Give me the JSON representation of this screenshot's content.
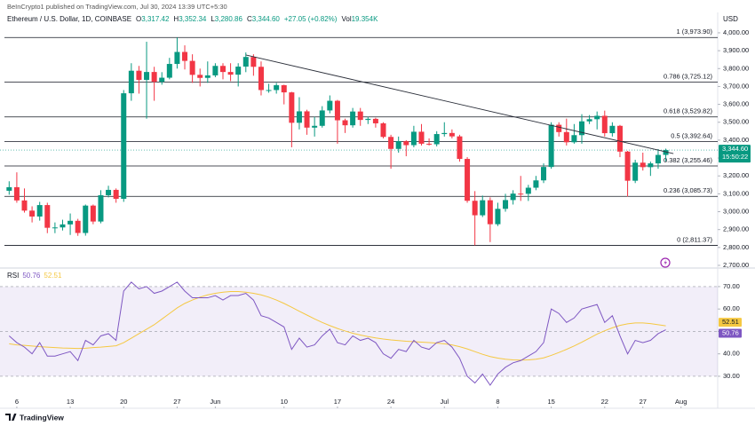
{
  "header": {
    "publisher": "BeInCrypto1 published on TradingView.com, Jul 30, 2024 13:39 UTC+5:30",
    "symbol": "Ethereum / U.S. Dollar, 1D, COINBASE",
    "ohlc": [
      {
        "key": "O",
        "value": "3,317.42"
      },
      {
        "key": "H",
        "value": "3,352.34"
      },
      {
        "key": "L",
        "value": "3,280.86"
      },
      {
        "key": "C",
        "value": "3,344.60"
      }
    ],
    "change": "+27.05 (+0.82%)",
    "volume_key": "Vol",
    "volume": "19.354K",
    "currency": "USD"
  },
  "footer": {
    "brand": "TradingView"
  },
  "chart_data": [
    {
      "type": "candlestick",
      "up_color": "#089981",
      "down_color": "#f23645",
      "xlim": [
        -1.2,
        92.8
      ],
      "xticks": [
        {
          "value": 1,
          "label": "6"
        },
        {
          "value": 8,
          "label": "13"
        },
        {
          "value": 15,
          "label": "20"
        },
        {
          "value": 22,
          "label": "27"
        },
        {
          "value": 27,
          "label": "Jun"
        },
        {
          "value": 36,
          "label": "10"
        },
        {
          "value": 43,
          "label": "17"
        },
        {
          "value": 50,
          "label": "24"
        },
        {
          "value": 57,
          "label": "Jul"
        },
        {
          "value": 64,
          "label": "8"
        },
        {
          "value": 71,
          "label": "15"
        },
        {
          "value": 78,
          "label": "22"
        },
        {
          "value": 83,
          "label": "27"
        },
        {
          "value": 88,
          "label": "Aug"
        }
      ],
      "ylim": [
        2695,
        4109
      ],
      "yticks": [
        {
          "value": 2700,
          "label": "2,700.00"
        },
        {
          "value": 2800,
          "label": "2,800.00"
        },
        {
          "value": 2900,
          "label": "2,900.00"
        },
        {
          "value": 3000,
          "label": "3,000.00"
        },
        {
          "value": 3100,
          "label": "3,100.00"
        },
        {
          "value": 3200,
          "label": "3,200.00"
        },
        {
          "value": 3300,
          "label": "3,300.00"
        },
        {
          "value": 3400,
          "label": "3,400.00"
        },
        {
          "value": 3500,
          "label": "3,500.00"
        },
        {
          "value": 3600,
          "label": "3,600.00"
        },
        {
          "value": 3700,
          "label": "3,700.00"
        },
        {
          "value": 3800,
          "label": "3,800.00"
        },
        {
          "value": 3900,
          "label": "3,900.00"
        },
        {
          "value": 4000,
          "label": "4,000.00"
        }
      ],
      "fib_levels": [
        {
          "value": 3973.9,
          "label": "1 (3,973.90)"
        },
        {
          "value": 3725.12,
          "label": "0.786 (3,725.12)"
        },
        {
          "value": 3529.82,
          "label": "0.618 (3,529.82)"
        },
        {
          "value": 3392.64,
          "label": "0.5 (3,392.64)"
        },
        {
          "value": 3255.46,
          "label": "0.382 (3,255.46)"
        },
        {
          "value": 3085.73,
          "label": "0.236 (3,085.73)"
        },
        {
          "value": 2811.37,
          "label": "0 (2,811.37)"
        }
      ],
      "trend_line": {
        "x": [
          31,
          87
        ],
        "y": [
          3876,
          3325
        ]
      },
      "last_price": {
        "value": 3344.6,
        "label": "3,344.60"
      },
      "countdown": "15:50:22",
      "open": [
        3117,
        3137,
        3063,
        3006,
        2973,
        3037,
        2910,
        2912,
        2929,
        2949,
        2881,
        3034,
        2945,
        3092,
        3122,
        3072,
        3662,
        3788,
        3737,
        3781,
        3726,
        3749,
        3826,
        3893,
        3843,
        3765,
        3748,
        3762,
        3815,
        3781,
        3766,
        3811,
        3865,
        3810,
        3680,
        3680,
        3707,
        3667,
        3497,
        3561,
        3470,
        3480,
        3566,
        3620,
        3511,
        3483,
        3560,
        3513,
        3519,
        3494,
        3418,
        3351,
        3394,
        3372,
        3447,
        3380,
        3377,
        3434,
        3440,
        3421,
        3295,
        3061,
        2980,
        3064,
        2930,
        3016,
        3065,
        3101,
        3100,
        3134,
        3175,
        3250,
        3486,
        3445,
        3388,
        3428,
        3505,
        3517,
        3536,
        3439,
        3480,
        3336,
        3173,
        3274,
        3249,
        3270,
        3317.42
      ],
      "high": [
        3170,
        3220,
        3130,
        3030,
        3055,
        3050,
        2940,
        2955,
        2990,
        2960,
        3040,
        3040,
        3120,
        3145,
        3130,
        3680,
        3830,
        3815,
        3950,
        3810,
        3780,
        3860,
        3973.9,
        3930,
        3880,
        3800,
        3840,
        3830,
        3830,
        3830,
        3830,
        3890,
        3880,
        3840,
        3715,
        3720,
        3710,
        3670,
        3640,
        3570,
        3530,
        3590,
        3650,
        3625,
        3520,
        3580,
        3580,
        3530,
        3525,
        3500,
        3430,
        3420,
        3400,
        3480,
        3490,
        3410,
        3450,
        3500,
        3460,
        3430,
        3305,
        3115,
        3090,
        3080,
        3050,
        3100,
        3120,
        3200,
        3150,
        3200,
        3270,
        3500,
        3500,
        3520,
        3490,
        3545,
        3540,
        3560,
        3565,
        3500,
        3485,
        3340,
        3290,
        3330,
        3280,
        3350,
        3352.34
      ],
      "low": [
        3095,
        3050,
        2995,
        2940,
        2950,
        2880,
        2880,
        2895,
        2870,
        2865,
        2866,
        2930,
        2935,
        3080,
        3050,
        3055,
        3620,
        3660,
        3520,
        3620,
        3710,
        3740,
        3800,
        3795,
        3720,
        3700,
        3720,
        3752,
        3740,
        3730,
        3700,
        3780,
        3760,
        3650,
        3665,
        3660,
        3600,
        3360,
        3460,
        3430,
        3420,
        3470,
        3550,
        3380,
        3440,
        3470,
        3480,
        3490,
        3470,
        3410,
        3240,
        3330,
        3310,
        3360,
        3370,
        3370,
        3365,
        3420,
        3410,
        3280,
        3050,
        2811.37,
        2970,
        2830,
        2920,
        3000,
        3040,
        3060,
        3060,
        3120,
        3160,
        3240,
        3420,
        3370,
        3380,
        3380,
        3490,
        3460,
        3420,
        3420,
        3305,
        3085,
        3160,
        3230,
        3200,
        3240,
        3280.86
      ],
      "close": [
        3137,
        3063,
        3006,
        2973,
        3037,
        2910,
        2912,
        2929,
        2949,
        2881,
        3034,
        2945,
        3092,
        3122,
        3072,
        3662,
        3788,
        3737,
        3781,
        3726,
        3749,
        3826,
        3893,
        3843,
        3765,
        3748,
        3762,
        3815,
        3781,
        3766,
        3811,
        3865,
        3810,
        3680,
        3680,
        3707,
        3667,
        3497,
        3561,
        3470,
        3480,
        3566,
        3620,
        3511,
        3483,
        3560,
        3513,
        3519,
        3494,
        3418,
        3351,
        3394,
        3372,
        3447,
        3380,
        3377,
        3434,
        3440,
        3421,
        3295,
        3061,
        2980,
        3064,
        2930,
        3016,
        3065,
        3101,
        3100,
        3134,
        3175,
        3250,
        3486,
        3445,
        3388,
        3428,
        3505,
        3517,
        3536,
        3439,
        3480,
        3336,
        3173,
        3274,
        3249,
        3270,
        3317.42,
        3344.6
      ]
    },
    {
      "type": "line",
      "title": "RSI",
      "ylim": [
        17.7,
        77.1
      ],
      "yticks": [
        {
          "value": 30,
          "label": "30.00"
        },
        {
          "value": 40,
          "label": "40.00"
        },
        {
          "value": 50,
          "label": "50.00"
        },
        {
          "value": 60,
          "label": "60.00"
        },
        {
          "value": 70,
          "label": "70.00"
        }
      ],
      "levels": [
        70,
        50,
        30
      ],
      "band_color": "#7e57c2",
      "series": [
        {
          "color": "#7e57c2",
          "tag": "50.76",
          "values": [
            48,
            45,
            43,
            40,
            45,
            39,
            39,
            40,
            41,
            37,
            46,
            44,
            48,
            49,
            46,
            68,
            72,
            69,
            70,
            67,
            68,
            70,
            72,
            68,
            65,
            65,
            65,
            66,
            64,
            66,
            66,
            67,
            64,
            57,
            56,
            54,
            52,
            42,
            47,
            43,
            44,
            48,
            51,
            45,
            44,
            48,
            46,
            47,
            45,
            40,
            38,
            42,
            41,
            46,
            43,
            42,
            45,
            46,
            43,
            38,
            30,
            27,
            31,
            26,
            31,
            34,
            36,
            37,
            39,
            41,
            45,
            60,
            58,
            54,
            56,
            60,
            61,
            62,
            54,
            57,
            48,
            40,
            46,
            45,
            46,
            49,
            50.76
          ]
        },
        {
          "color": "#f5c842",
          "tag": "52.51",
          "values": [
            44.5,
            44,
            43.8,
            43.5,
            43.2,
            43,
            42.8,
            42.6,
            42.5,
            42.4,
            42.5,
            42.8,
            43,
            43.3,
            43.6,
            45,
            47,
            49,
            51,
            53,
            55.5,
            58,
            60.5,
            62.5,
            64,
            65.3,
            66.3,
            67,
            67.5,
            67.8,
            67.8,
            67.5,
            67,
            66.3,
            65.3,
            64,
            62.5,
            60.8,
            59,
            57.3,
            55.6,
            54,
            52.6,
            51.3,
            50.2,
            49.2,
            48.4,
            47.7,
            47.1,
            46.6,
            46.2,
            45.9,
            45.6,
            45.4,
            45.2,
            45,
            44.8,
            44.5,
            44,
            43.2,
            42.2,
            41,
            39.8,
            38.8,
            38.1,
            37.6,
            37.3,
            37.2,
            37.3,
            37.6,
            38.2,
            39.3,
            40.6,
            42,
            43.5,
            45.2,
            47,
            48.8,
            50.3,
            51.6,
            52.7,
            53.4,
            53.8,
            53.8,
            53.5,
            53,
            52.51
          ]
        }
      ]
    }
  ]
}
